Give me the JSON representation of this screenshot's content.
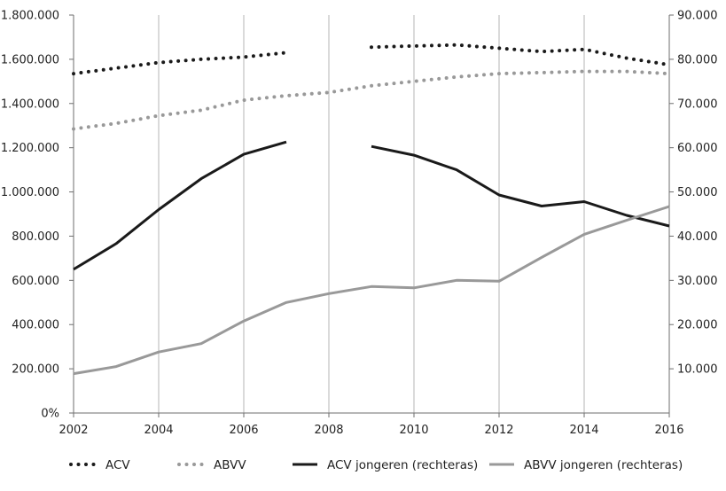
{
  "chart_data": {
    "type": "line",
    "x": [
      2002,
      2003,
      2004,
      2005,
      2006,
      2007,
      2008,
      2009,
      2010,
      2011,
      2012,
      2013,
      2014,
      2015,
      2016
    ],
    "x_ticks": [
      2002,
      2004,
      2006,
      2008,
      2010,
      2012,
      2014,
      2016
    ],
    "x_tick_labels": [
      "2002",
      "2004",
      "2006",
      "2008",
      "2010",
      "2012",
      "2014",
      "2016"
    ],
    "xlim": [
      2002,
      2016
    ],
    "ylim_left": [
      0,
      1800000
    ],
    "ylim_right": [
      0,
      90000
    ],
    "y_left_ticks": [
      0,
      200000,
      400000,
      600000,
      800000,
      1000000,
      1200000,
      1400000,
      1600000,
      1800000
    ],
    "y_left_tick_labels": [
      "0%",
      "200.000",
      "400.000",
      "600.000",
      "800.000",
      "1.000.000",
      "1.200.000",
      "1.400.000",
      "1.600.000",
      "1.800.000"
    ],
    "y_right_ticks": [
      10000,
      20000,
      30000,
      40000,
      50000,
      60000,
      70000,
      80000,
      90000
    ],
    "y_right_tick_labels": [
      "10.000",
      "20.000",
      "30.000",
      "40.000",
      "50.000",
      "60.000",
      "70.000",
      "80.000",
      "90.000"
    ],
    "grid": "vertical",
    "legend_position": "bottom",
    "series": [
      {
        "name": "ACV",
        "axis": "left",
        "style": "dotted",
        "color": "#1a1a1a",
        "values": [
          1535000,
          1560000,
          1585000,
          1600000,
          1610000,
          1630000,
          null,
          1655000,
          1660000,
          1665000,
          1650000,
          1635000,
          1645000,
          1605000,
          1575000
        ]
      },
      {
        "name": "ABVV",
        "axis": "left",
        "style": "dotted",
        "color": "#999999",
        "values": [
          1285000,
          1310000,
          1345000,
          1370000,
          1415000,
          1435000,
          1450000,
          1480000,
          1500000,
          1520000,
          1535000,
          1540000,
          1545000,
          1545000,
          1535000
        ]
      },
      {
        "name": "ACV jongeren (rechteras)",
        "axis": "right",
        "style": "solid",
        "color": "#1a1a1a",
        "values": [
          32500,
          38300,
          46000,
          53000,
          58500,
          61300,
          null,
          60300,
          58300,
          55000,
          49300,
          46800,
          47800,
          44700,
          42300
        ]
      },
      {
        "name": "ABVV jongeren (rechteras)",
        "axis": "right",
        "style": "solid",
        "color": "#999999",
        "values": [
          8900,
          10500,
          13800,
          15700,
          20800,
          25000,
          27000,
          28600,
          28300,
          30000,
          29800,
          35200,
          40400,
          43600,
          46700
        ]
      }
    ]
  }
}
